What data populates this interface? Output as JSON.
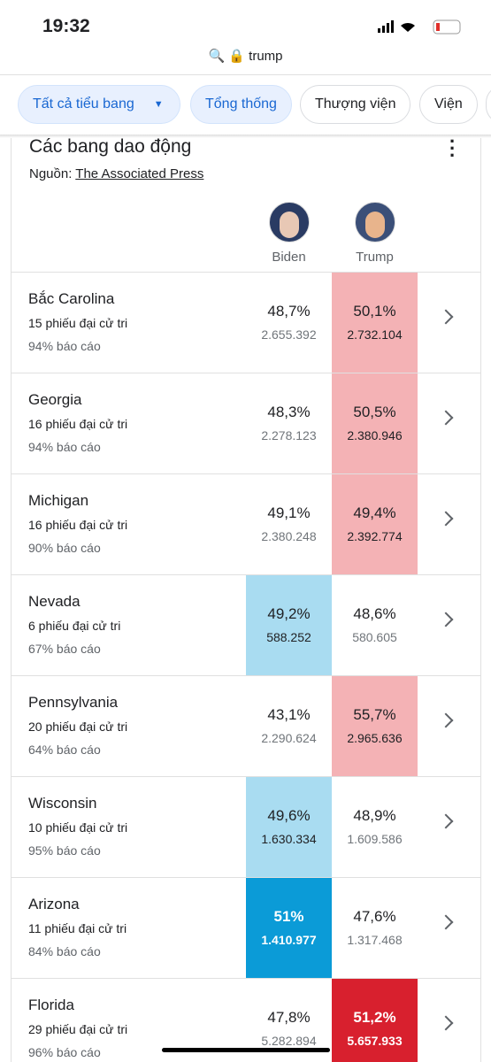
{
  "status": {
    "time": "19:32"
  },
  "url": "trump",
  "tabs": [
    "Tất cả tiểu bang",
    "Tổng thống",
    "Thượng viện",
    "Viện"
  ],
  "card": {
    "title": "Các bang dao động",
    "source_label": "Nguồn:",
    "source": "The Associated Press",
    "columns": [
      "Biden",
      "Trump"
    ],
    "rows": [
      {
        "name": "Bắc Carolina",
        "electors": "15 phiếu đại cử tri",
        "reported": "94% báo cáo",
        "biden_pct": "48,7%",
        "biden_votes": "2.655.392",
        "trump_pct": "50,1%",
        "trump_votes": "2.732.104",
        "leader": "trump",
        "color": "#f4b2b5",
        "strong": false
      },
      {
        "name": "Georgia",
        "electors": "16 phiếu đại cử tri",
        "reported": "94% báo cáo",
        "biden_pct": "48,3%",
        "biden_votes": "2.278.123",
        "trump_pct": "50,5%",
        "trump_votes": "2.380.946",
        "leader": "trump",
        "color": "#f4b2b5",
        "strong": false
      },
      {
        "name": "Michigan",
        "electors": "16 phiếu đại cử tri",
        "reported": "90% báo cáo",
        "biden_pct": "49,1%",
        "biden_votes": "2.380.248",
        "trump_pct": "49,4%",
        "trump_votes": "2.392.774",
        "leader": "trump",
        "color": "#f4b2b5",
        "strong": false
      },
      {
        "name": "Nevada",
        "electors": "6 phiếu đại cử tri",
        "reported": "67% báo cáo",
        "biden_pct": "49,2%",
        "biden_votes": "588.252",
        "trump_pct": "48,6%",
        "trump_votes": "580.605",
        "leader": "biden",
        "color": "#a9dcf1",
        "strong": false
      },
      {
        "name": "Pennsylvania",
        "electors": "20 phiếu đại cử tri",
        "reported": "64% báo cáo",
        "biden_pct": "43,1%",
        "biden_votes": "2.290.624",
        "trump_pct": "55,7%",
        "trump_votes": "2.965.636",
        "leader": "trump",
        "color": "#f4b2b5",
        "strong": false
      },
      {
        "name": "Wisconsin",
        "electors": "10 phiếu đại cử tri",
        "reported": "95% báo cáo",
        "biden_pct": "49,6%",
        "biden_votes": "1.630.334",
        "trump_pct": "48,9%",
        "trump_votes": "1.609.586",
        "leader": "biden",
        "color": "#a9dcf1",
        "strong": false
      },
      {
        "name": "Arizona",
        "electors": "11 phiếu đại cử tri",
        "reported": "84% báo cáo",
        "biden_pct": "51%",
        "biden_votes": "1.410.977",
        "trump_pct": "47,6%",
        "trump_votes": "1.317.468",
        "leader": "biden",
        "color": "#0b9bd7",
        "strong": true
      },
      {
        "name": "Florida",
        "electors": "29 phiếu đại cử tri",
        "reported": "96% báo cáo",
        "biden_pct": "47,8%",
        "biden_votes": "5.282.894",
        "trump_pct": "51,2%",
        "trump_votes": "5.657.933",
        "leader": "trump",
        "color": "#d8202e",
        "strong": true
      }
    ]
  }
}
